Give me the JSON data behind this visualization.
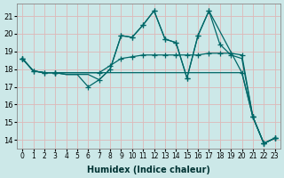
{
  "xlabel": "Humidex (Indice chaleur)",
  "bg_color": "#cce8e8",
  "grid_color": "#ddb8b8",
  "line_color": "#006868",
  "xlim": [
    -0.5,
    23.5
  ],
  "ylim": [
    13.5,
    21.7
  ],
  "xticks": [
    0,
    1,
    2,
    3,
    4,
    5,
    6,
    7,
    8,
    9,
    10,
    11,
    12,
    13,
    14,
    15,
    16,
    17,
    18,
    19,
    20,
    21,
    22,
    23
  ],
  "yticks": [
    14,
    15,
    16,
    17,
    18,
    19,
    20,
    21
  ],
  "lines": [
    {
      "x": [
        0,
        1,
        2,
        3,
        4,
        5,
        6,
        7,
        8,
        9,
        10,
        11,
        12,
        13,
        14,
        15,
        16,
        17,
        20,
        21,
        22,
        23
      ],
      "y": [
        18.6,
        17.9,
        17.8,
        17.8,
        17.7,
        17.7,
        17.0,
        17.4,
        18.0,
        19.9,
        19.8,
        20.5,
        21.3,
        19.7,
        19.5,
        17.5,
        19.9,
        21.3,
        17.8,
        15.3,
        13.8,
        14.1
      ]
    },
    {
      "x": [
        0,
        1,
        2,
        3,
        4,
        5,
        6,
        7,
        8,
        9,
        10,
        11,
        12,
        13,
        14,
        15,
        16,
        17,
        18,
        19,
        20,
        21,
        22,
        23
      ],
      "y": [
        18.6,
        17.9,
        17.8,
        17.8,
        17.7,
        17.7,
        17.7,
        17.4,
        18.0,
        19.9,
        19.8,
        20.5,
        21.3,
        19.7,
        19.5,
        17.5,
        19.9,
        21.3,
        19.4,
        18.8,
        18.6,
        15.3,
        13.8,
        14.1
      ]
    },
    {
      "x": [
        0,
        1,
        2,
        3,
        4,
        5,
        6,
        7,
        8,
        9,
        10,
        11,
        12,
        13,
        14,
        15,
        16,
        17,
        18,
        19,
        20,
        21,
        22,
        23
      ],
      "y": [
        18.6,
        17.9,
        17.8,
        17.8,
        17.8,
        17.8,
        17.8,
        17.8,
        18.2,
        18.6,
        18.7,
        18.8,
        18.8,
        18.8,
        18.8,
        18.8,
        18.8,
        18.9,
        18.9,
        18.9,
        18.8,
        15.3,
        13.8,
        14.1
      ]
    },
    {
      "x": [
        0,
        1,
        2,
        3,
        4,
        5,
        6,
        7,
        8,
        9,
        10,
        11,
        12,
        13,
        14,
        15,
        16,
        17,
        18,
        19,
        20,
        21,
        22,
        23
      ],
      "y": [
        18.6,
        17.9,
        17.8,
        17.8,
        17.8,
        17.8,
        17.8,
        17.8,
        17.8,
        17.8,
        17.8,
        17.8,
        17.8,
        17.8,
        17.8,
        17.8,
        17.8,
        17.8,
        17.8,
        17.8,
        17.8,
        15.3,
        13.8,
        14.1
      ]
    }
  ],
  "marker_lines": [
    {
      "x": [
        0,
        1,
        2,
        3,
        6,
        7,
        8,
        9,
        10,
        11,
        12,
        13,
        14,
        15,
        16,
        17,
        20,
        21,
        22,
        23
      ],
      "y": [
        18.6,
        17.9,
        17.8,
        17.8,
        17.0,
        17.4,
        18.0,
        19.9,
        19.8,
        20.5,
        21.3,
        19.7,
        19.5,
        17.5,
        19.9,
        21.3,
        17.8,
        15.3,
        13.8,
        14.1
      ]
    },
    {
      "x": [
        0,
        1,
        2,
        3,
        9,
        10,
        11,
        12,
        13,
        14,
        15,
        16,
        17,
        18,
        19,
        21,
        22,
        23
      ],
      "y": [
        18.6,
        17.9,
        17.8,
        17.8,
        19.9,
        19.8,
        20.5,
        21.3,
        19.7,
        19.5,
        17.5,
        19.9,
        21.3,
        19.4,
        18.8,
        15.3,
        13.8,
        14.1
      ]
    },
    {
      "x": [
        0,
        3,
        7,
        8,
        9,
        10,
        11,
        12,
        13,
        14,
        15,
        16,
        17,
        18,
        19,
        20,
        21,
        22,
        23
      ],
      "y": [
        18.6,
        17.8,
        17.8,
        18.2,
        18.6,
        18.7,
        18.8,
        18.8,
        18.8,
        18.8,
        18.8,
        18.8,
        18.9,
        18.9,
        18.9,
        18.8,
        15.3,
        13.8,
        14.1
      ]
    },
    {
      "x": [
        0,
        3,
        21,
        22,
        23
      ],
      "y": [
        18.6,
        17.8,
        15.3,
        13.8,
        14.1
      ]
    }
  ]
}
